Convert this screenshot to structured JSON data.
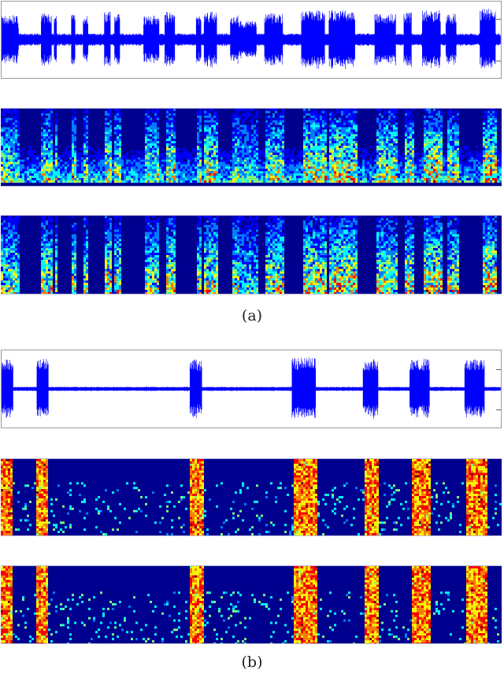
{
  "figure": {
    "captions": {
      "a": "(a)",
      "b": "(b)"
    },
    "colormap": [
      "#00008f",
      "#0000ff",
      "#0080ff",
      "#00ffff",
      "#80ff80",
      "#ffff00",
      "#ff8000",
      "#ff0000",
      "#800000"
    ],
    "waveform_color": "#0000ff"
  },
  "chart_data": [
    {
      "type": "waveform",
      "panel": "a-top",
      "title": "",
      "xlabel": "",
      "ylabel": "",
      "baseline_amp": 0.18,
      "bursts_x_fraction": [
        [
          0.0,
          0.06,
          0.7
        ],
        [
          0.05,
          0.065,
          0.55
        ],
        [
          0.15,
          0.19,
          0.75
        ],
        [
          0.2,
          0.21,
          0.7
        ],
        [
          0.265,
          0.28,
          0.75
        ],
        [
          0.31,
          0.33,
          0.7
        ],
        [
          0.39,
          0.415,
          0.8
        ],
        [
          0.43,
          0.45,
          0.75
        ],
        [
          0.54,
          0.6,
          0.7
        ],
        [
          0.62,
          0.66,
          0.8
        ],
        [
          0.74,
          0.76,
          0.7
        ],
        [
          0.77,
          0.82,
          0.8
        ],
        [
          0.87,
          0.9,
          0.7
        ],
        [
          0.9,
          0.97,
          0.55
        ],
        [
          1.0,
          1.07,
          0.75
        ],
        [
          1.14,
          1.23,
          0.85
        ],
        [
          1.245,
          1.345,
          0.85
        ],
        [
          1.42,
          1.5,
          0.75
        ],
        [
          1.53,
          1.56,
          0.8
        ],
        [
          1.6,
          1.67,
          0.85
        ],
        [
          1.69,
          1.73,
          0.75
        ],
        [
          1.82,
          1.88,
          0.9
        ]
      ],
      "x_scale": 1.9
    },
    {
      "type": "heatmap",
      "panel": "a-middle",
      "description": "noisy spectrogram, broadband noise low band",
      "noise_level": 0.45
    },
    {
      "type": "heatmap",
      "panel": "a-bottom",
      "description": "enhanced spectrogram, noise suppressed",
      "noise_level": 0.05
    },
    {
      "type": "waveform",
      "panel": "b-top",
      "baseline_amp": 0.06,
      "bursts_x_fraction": [
        [
          0.0,
          0.015,
          0.85
        ],
        [
          0.045,
          0.06,
          0.85
        ],
        [
          0.24,
          0.255,
          0.85
        ],
        [
          0.37,
          0.4,
          0.9
        ],
        [
          0.46,
          0.48,
          0.85
        ],
        [
          0.52,
          0.545,
          0.85
        ],
        [
          0.59,
          0.615,
          0.85
        ]
      ],
      "x_scale": 0.636
    },
    {
      "type": "heatmap",
      "panel": "b-middle",
      "description": "noisy spectrogram with loud broadband bursts",
      "noise_level": 0.0
    },
    {
      "type": "heatmap",
      "panel": "b-bottom",
      "description": "enhanced spectrogram with loud broadband bursts",
      "noise_level": 0.0
    }
  ]
}
